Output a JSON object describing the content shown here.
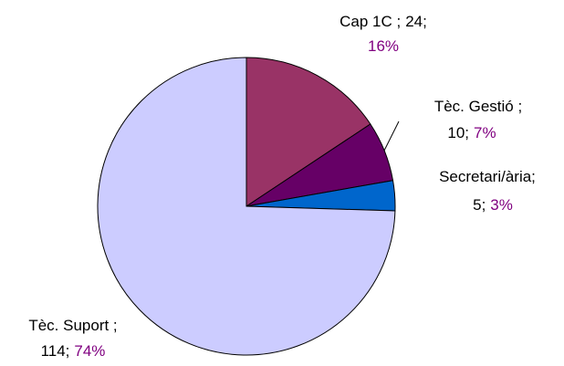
{
  "chart_data": {
    "type": "pie",
    "categories": [
      "Cap 1C ;",
      "Tèc. Gestió ;",
      "Secretari/ària;",
      "Tèc. Suport ;"
    ],
    "values": [
      24,
      10,
      5,
      114
    ],
    "value_labels": [
      "24;",
      "10;",
      "5;",
      "114;"
    ],
    "percents": [
      16,
      7,
      3,
      74
    ],
    "percent_labels": [
      "16%",
      "7%",
      "3%",
      "74%"
    ],
    "colors": [
      "#993366",
      "#660066",
      "#0066cc",
      "#ccccff"
    ]
  }
}
